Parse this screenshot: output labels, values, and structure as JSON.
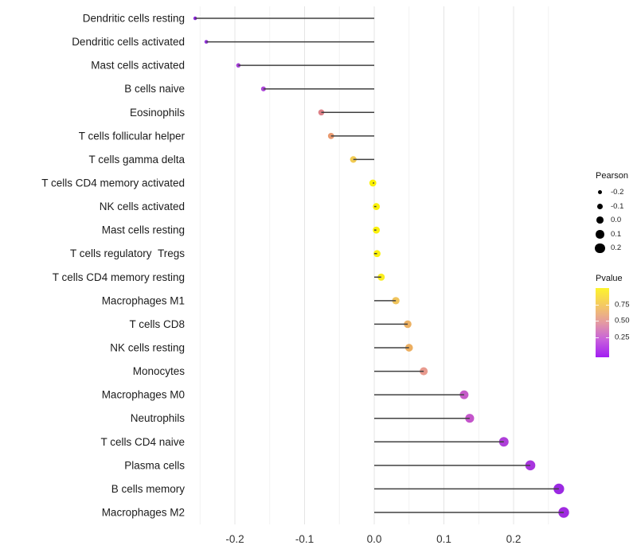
{
  "chart_data": {
    "type": "scatter",
    "variant": "lollipop",
    "orientation": "horizontal",
    "title": "",
    "xlabel": "",
    "ylabel": "",
    "xlim": [
      -0.27,
      0.29
    ],
    "grid": true,
    "x_ticks": [
      {
        "value": -0.2,
        "label": "-0.2"
      },
      {
        "value": -0.1,
        "label": "-0.1"
      },
      {
        "value": 0.0,
        "label": "0.0"
      },
      {
        "value": 0.1,
        "label": "0.1"
      },
      {
        "value": 0.2,
        "label": "0.2"
      }
    ],
    "points": [
      {
        "label": "Dendritic cells resting",
        "pearson": -0.257,
        "color": "#8a24da"
      },
      {
        "label": "Dendritic cells activated",
        "pearson": -0.241,
        "color": "#9334dc"
      },
      {
        "label": "Mast cells activated",
        "pearson": -0.195,
        "color": "#a43fd8"
      },
      {
        "label": "B cells naive",
        "pearson": -0.159,
        "color": "#ab45d8"
      },
      {
        "label": "Eosinophils",
        "pearson": -0.076,
        "color": "#dd8087"
      },
      {
        "label": "T cells follicular helper",
        "pearson": -0.062,
        "color": "#e99a70"
      },
      {
        "label": "T cells gamma delta",
        "pearson": -0.03,
        "color": "#f2cb52"
      },
      {
        "label": "T cells CD4 memory activated",
        "pearson": -0.002,
        "color": "#fbf104"
      },
      {
        "label": "NK cells activated",
        "pearson": 0.003,
        "color": "#fbf10c"
      },
      {
        "label": "Mast cells resting",
        "pearson": 0.003,
        "color": "#fbf10c"
      },
      {
        "label": "T cells regulatory  Tregs",
        "pearson": 0.004,
        "color": "#fbf10c"
      },
      {
        "label": "T cells CD4 memory resting",
        "pearson": 0.01,
        "color": "#f9ed20"
      },
      {
        "label": "Macrophages M1",
        "pearson": 0.031,
        "color": "#f0c45c"
      },
      {
        "label": "T cells CD8",
        "pearson": 0.048,
        "color": "#ecb163"
      },
      {
        "label": "NK cells resting",
        "pearson": 0.05,
        "color": "#ecae60"
      },
      {
        "label": "Monocytes",
        "pearson": 0.071,
        "color": "#e89a8e"
      },
      {
        "label": "Macrophages M0",
        "pearson": 0.129,
        "color": "#c65bc8"
      },
      {
        "label": "Neutrophils",
        "pearson": 0.137,
        "color": "#c455cb"
      },
      {
        "label": "T cells CD4 naive",
        "pearson": 0.186,
        "color": "#ae3fd9"
      },
      {
        "label": "Plasma cells",
        "pearson": 0.224,
        "color": "#a835de"
      },
      {
        "label": "B cells memory",
        "pearson": 0.265,
        "color": "#9b2ae2"
      },
      {
        "label": "Macrophages M2",
        "pearson": 0.272,
        "color": "#a02ae0"
      }
    ],
    "legend_position": "right",
    "legends": {
      "size": {
        "title": "Pearson",
        "entries": [
          {
            "value": -0.2,
            "label": "-0.2"
          },
          {
            "value": -0.1,
            "label": "-0.1"
          },
          {
            "value": 0.0,
            "label": "0.0"
          },
          {
            "value": 0.1,
            "label": "0.1"
          },
          {
            "value": 0.2,
            "label": "0.2"
          }
        ],
        "dot_color": "#000000"
      },
      "color": {
        "title": "Pvalue",
        "ticks": [
          {
            "label": "0.75",
            "pos": 0.24
          },
          {
            "label": "0.50",
            "pos": 0.47
          },
          {
            "label": "0.25",
            "pos": 0.71
          }
        ],
        "gradient_top_to_bottom": [
          "#fdf42c",
          "#f4c765",
          "#e49aa2",
          "#c75fdd",
          "#a21df2"
        ]
      }
    },
    "colors": {
      "stem": "#404040",
      "grid_major": "#e4e4e4",
      "grid_minor": "#f2f2f2",
      "axis_text": "#333333",
      "category_text": "#1c1c1c"
    }
  }
}
